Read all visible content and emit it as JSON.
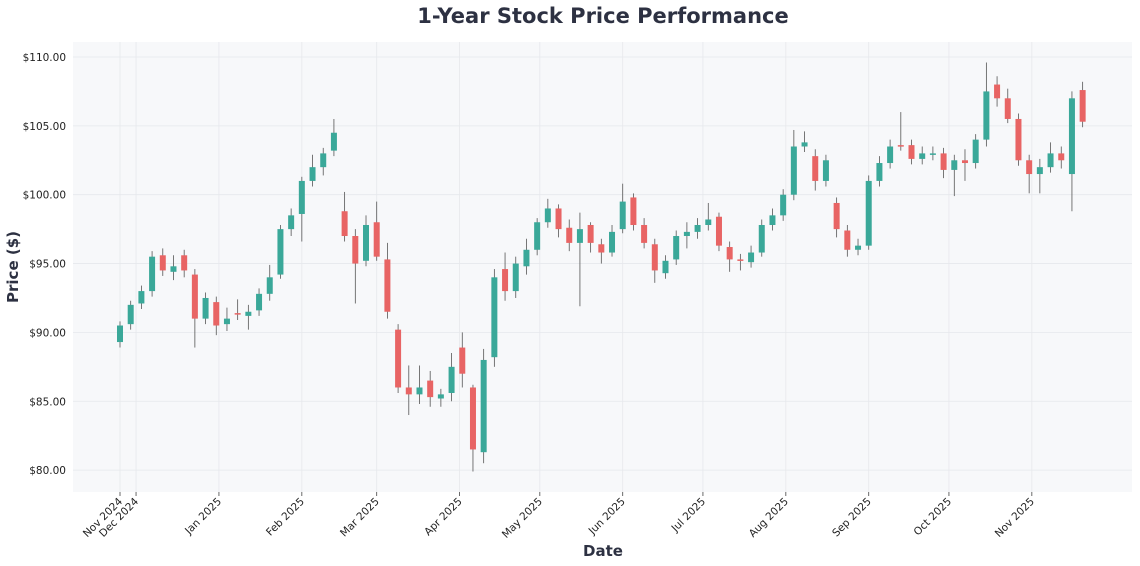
{
  "chart_data": {
    "type": "candlestick",
    "title": "1-Year Stock Price Performance",
    "xlabel": "Date",
    "ylabel": "Price ($)",
    "ylim": [
      79,
      111
    ],
    "yticks": [
      "$80.00",
      "$85.00",
      "$90.00",
      "$95.00",
      "$100.00",
      "$105.00",
      "$110.00"
    ],
    "ytick_values": [
      80,
      85,
      90,
      95,
      100,
      105,
      110
    ],
    "xticks": [
      {
        "date": "2024-11-25",
        "label": "Nov 2024"
      },
      {
        "date": "2024-12-01",
        "label": "Dec 2024"
      },
      {
        "date": "2025-01-01",
        "label": "Jan 2025"
      },
      {
        "date": "2025-02-01",
        "label": "Feb 2025"
      },
      {
        "date": "2025-03-01",
        "label": "Mar 2025"
      },
      {
        "date": "2025-04-01",
        "label": "Apr 2025"
      },
      {
        "date": "2025-05-01",
        "label": "May 2025"
      },
      {
        "date": "2025-06-01",
        "label": "Jun 2025"
      },
      {
        "date": "2025-07-01",
        "label": "Jul 2025"
      },
      {
        "date": "2025-08-01",
        "label": "Aug 2025"
      },
      {
        "date": "2025-09-01",
        "label": "Sep 2025"
      },
      {
        "date": "2025-10-01",
        "label": "Oct 2025"
      },
      {
        "date": "2025-11-01",
        "label": "Nov 2025"
      }
    ],
    "grid": true,
    "colors": {
      "up": "#3aa899",
      "down": "#e86464",
      "background": "#f7f8fa",
      "grid": "#e6e8ec"
    },
    "columns": [
      "date",
      "open",
      "high",
      "low",
      "close"
    ],
    "candles": [
      [
        "2024-11-25",
        89.3,
        90.8,
        88.9,
        90.5
      ],
      [
        "2024-11-29",
        90.6,
        92.3,
        90.2,
        92
      ],
      [
        "2024-12-03",
        92.1,
        93.4,
        91.7,
        93
      ],
      [
        "2024-12-07",
        93,
        95.9,
        92.6,
        95.5
      ],
      [
        "2024-12-11",
        95.6,
        96.1,
        94.1,
        94.5
      ],
      [
        "2024-12-15",
        94.4,
        95.6,
        93.8,
        94.8
      ],
      [
        "2024-12-19",
        95.6,
        96,
        94,
        94.5
      ],
      [
        "2024-12-23",
        94.2,
        94.6,
        88.9,
        91
      ],
      [
        "2024-12-27",
        91,
        92.9,
        90.6,
        92.5
      ],
      [
        "2024-12-31",
        92.2,
        92.6,
        89.8,
        90.5
      ],
      [
        "2025-01-04",
        90.6,
        91.8,
        90.1,
        91
      ],
      [
        "2025-01-08",
        91.4,
        92.4,
        90.9,
        91.3
      ],
      [
        "2025-01-12",
        91.2,
        92,
        90.2,
        91.5
      ],
      [
        "2025-01-16",
        91.6,
        93.2,
        91.2,
        92.8
      ],
      [
        "2025-01-20",
        92.8,
        94.9,
        92.3,
        94
      ],
      [
        "2025-01-24",
        94.2,
        97.8,
        93.9,
        97.5
      ],
      [
        "2025-01-28",
        97.5,
        99,
        97,
        98.5
      ],
      [
        "2025-02-01",
        98.6,
        101.3,
        96.6,
        101
      ],
      [
        "2025-02-05",
        101,
        102.9,
        100.6,
        102
      ],
      [
        "2025-02-09",
        102,
        103.4,
        101.4,
        103
      ],
      [
        "2025-02-13",
        103.2,
        105.5,
        102.8,
        104.5
      ],
      [
        "2025-02-17",
        98.8,
        100.2,
        96.6,
        97
      ],
      [
        "2025-02-21",
        97,
        97.5,
        92.1,
        95
      ],
      [
        "2025-02-25",
        95.2,
        98.5,
        94.8,
        97.8
      ],
      [
        "2025-03-01",
        98,
        99.5,
        95.2,
        95.5
      ],
      [
        "2025-03-05",
        95.3,
        96.5,
        91,
        91.5
      ],
      [
        "2025-03-09",
        90.2,
        90.6,
        85.6,
        86
      ],
      [
        "2025-03-13",
        86,
        87.6,
        84,
        85.5
      ],
      [
        "2025-03-17",
        85.5,
        87.6,
        84.8,
        86
      ],
      [
        "2025-03-21",
        86.5,
        87.2,
        84.6,
        85.3
      ],
      [
        "2025-03-25",
        85.2,
        85.9,
        84.6,
        85.5
      ],
      [
        "2025-03-29",
        85.6,
        88.5,
        85,
        87.5
      ],
      [
        "2025-04-02",
        88.9,
        90,
        86,
        87
      ],
      [
        "2025-04-06",
        86,
        86.2,
        79.9,
        81.5
      ],
      [
        "2025-04-10",
        81.3,
        88.8,
        80.5,
        88
      ],
      [
        "2025-04-14",
        88.2,
        94.6,
        87.5,
        94
      ],
      [
        "2025-04-18",
        94.6,
        95.8,
        92.3,
        93
      ],
      [
        "2025-04-22",
        93,
        95.5,
        92.5,
        95
      ],
      [
        "2025-04-26",
        94.8,
        96.8,
        94.2,
        96
      ],
      [
        "2025-04-30",
        96,
        98.3,
        95.6,
        98
      ],
      [
        "2025-05-04",
        98,
        99.7,
        97.6,
        99
      ],
      [
        "2025-05-08",
        99,
        99.3,
        96.9,
        97.5
      ],
      [
        "2025-05-12",
        97.6,
        98.2,
        95.9,
        96.5
      ],
      [
        "2025-05-16",
        96.5,
        98.7,
        91.9,
        97.5
      ],
      [
        "2025-05-20",
        97.8,
        98,
        95.8,
        96.5
      ],
      [
        "2025-05-24",
        96.4,
        96.8,
        95,
        95.8
      ],
      [
        "2025-05-28",
        95.8,
        97.8,
        95.5,
        97.3
      ],
      [
        "2025-06-01",
        97.5,
        100.8,
        97.2,
        99.5
      ],
      [
        "2025-06-05",
        99.8,
        100.1,
        97.4,
        97.8
      ],
      [
        "2025-06-09",
        97.8,
        98.3,
        96.1,
        96.5
      ],
      [
        "2025-06-13",
        96.4,
        96.8,
        93.6,
        94.5
      ],
      [
        "2025-06-17",
        94.3,
        95.6,
        93.9,
        95.2
      ],
      [
        "2025-06-21",
        95.3,
        97.4,
        94.9,
        97
      ],
      [
        "2025-06-25",
        97,
        98,
        96.1,
        97.3
      ],
      [
        "2025-06-29",
        97.3,
        98.3,
        96.8,
        97.8
      ],
      [
        "2025-07-03",
        97.8,
        99.4,
        97.4,
        98.2
      ],
      [
        "2025-07-07",
        98.4,
        98.7,
        95.9,
        96.3
      ],
      [
        "2025-07-11",
        96.2,
        96.6,
        94.4,
        95.3
      ],
      [
        "2025-07-15",
        95.3,
        95.7,
        94.5,
        95.2
      ],
      [
        "2025-07-19",
        95.1,
        96.3,
        94.7,
        95.8
      ],
      [
        "2025-07-23",
        95.8,
        98.2,
        95.5,
        97.8
      ],
      [
        "2025-07-27",
        97.8,
        99,
        97.4,
        98.5
      ],
      [
        "2025-07-31",
        98.5,
        100.4,
        98.1,
        100
      ],
      [
        "2025-08-04",
        100,
        104.7,
        99.6,
        103.5
      ],
      [
        "2025-08-08",
        103.5,
        104.6,
        103.1,
        103.8
      ],
      [
        "2025-08-12",
        102.8,
        103.3,
        100.3,
        101
      ],
      [
        "2025-08-16",
        101,
        102.9,
        100.6,
        102.5
      ],
      [
        "2025-08-20",
        99.4,
        99.8,
        96.9,
        97.5
      ],
      [
        "2025-08-24",
        97.4,
        97.8,
        95.5,
        96
      ],
      [
        "2025-08-28",
        96,
        96.8,
        95.6,
        96.3
      ],
      [
        "2025-09-01",
        96.3,
        101.4,
        96,
        101
      ],
      [
        "2025-09-05",
        101,
        102.8,
        100.6,
        102.3
      ],
      [
        "2025-09-09",
        102.3,
        104,
        101.9,
        103.5
      ],
      [
        "2025-09-13",
        103.6,
        106,
        103.2,
        103.5
      ],
      [
        "2025-09-17",
        103.6,
        104,
        102.2,
        102.6
      ],
      [
        "2025-09-21",
        102.6,
        103.5,
        102.2,
        103
      ],
      [
        "2025-09-25",
        103,
        103.5,
        102.5,
        103
      ],
      [
        "2025-09-29",
        103,
        103.4,
        101.2,
        101.8
      ],
      [
        "2025-10-03",
        101.8,
        102.9,
        99.9,
        102.5
      ],
      [
        "2025-10-07",
        102.5,
        103.3,
        101,
        102.3
      ],
      [
        "2025-10-11",
        102.3,
        104.4,
        101.9,
        104
      ],
      [
        "2025-10-15",
        104,
        109.6,
        103.5,
        107.5
      ],
      [
        "2025-10-19",
        108,
        108.6,
        106.4,
        107
      ],
      [
        "2025-10-23",
        107,
        107.7,
        105.2,
        105.5
      ],
      [
        "2025-10-27",
        105.5,
        105.9,
        102.1,
        102.5
      ],
      [
        "2025-10-31",
        102.5,
        102.9,
        100.1,
        101.5
      ],
      [
        "2025-11-04",
        101.5,
        102.6,
        100.1,
        102
      ],
      [
        "2025-11-08",
        102,
        103.8,
        101.6,
        103
      ],
      [
        "2025-11-12",
        103,
        103.5,
        101.9,
        102.5
      ],
      [
        "2025-11-16",
        101.5,
        107.5,
        98.8,
        107
      ],
      [
        "2025-11-20",
        107.6,
        108.2,
        104.9,
        105.3
      ]
    ]
  }
}
